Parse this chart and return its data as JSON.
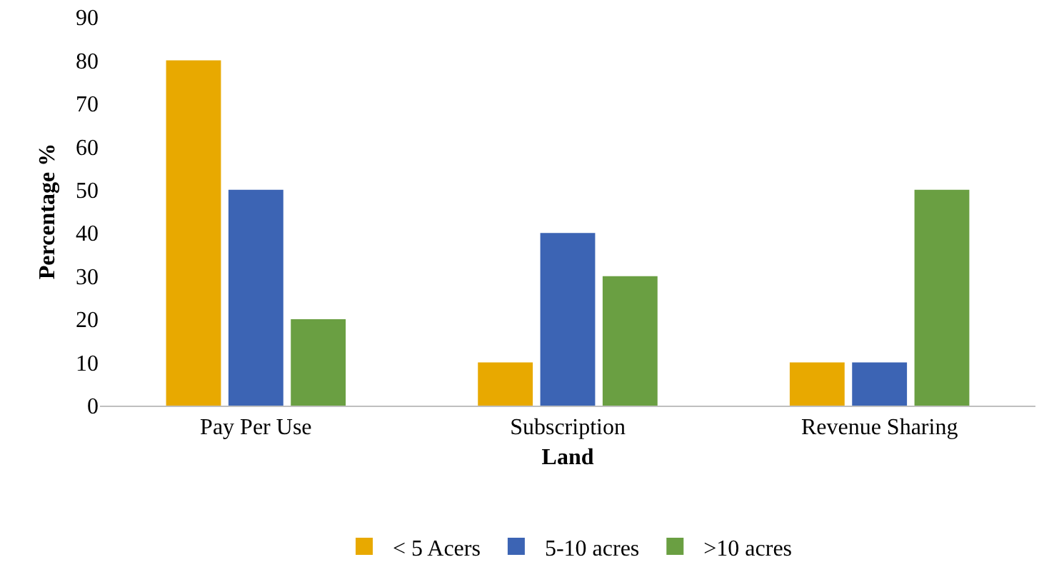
{
  "chart_data": {
    "type": "bar",
    "xlabel": "Land",
    "ylabel": "Percentage %",
    "categories": [
      "Pay Per Use",
      "Subscription",
      "Revenue Sharing"
    ],
    "series": [
      {
        "name": "< 5 Acers",
        "color": "#e8a900",
        "values": [
          80,
          10,
          10
        ]
      },
      {
        "name": "5-10 acres",
        "color": "#3c64b4",
        "values": [
          50,
          40,
          10
        ]
      },
      {
        "name": ">10 acres",
        "color": "#6a9f42",
        "values": [
          20,
          30,
          50
        ]
      }
    ],
    "ylim": [
      0,
      90
    ],
    "yticks": [
      0,
      10,
      20,
      30,
      40,
      50,
      60,
      70,
      80,
      90
    ],
    "grid": false,
    "legend": "bottom"
  }
}
